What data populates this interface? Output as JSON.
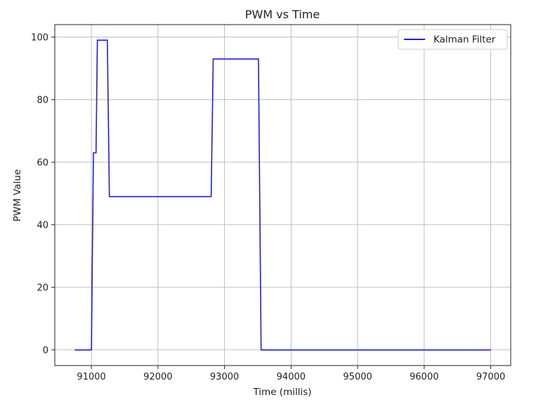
{
  "chart_data": {
    "type": "line",
    "title": "PWM vs Time",
    "xlabel": "Time (millis)",
    "ylabel": "PWM Value",
    "xlim": [
      90450,
      97300
    ],
    "ylim": [
      -5,
      104
    ],
    "xticks": [
      91000,
      92000,
      93000,
      94000,
      95000,
      96000,
      97000
    ],
    "yticks": [
      0,
      20,
      40,
      60,
      80,
      100
    ],
    "grid": true,
    "legend_position": "top-right",
    "series": [
      {
        "name": "Kalman Filter",
        "color": "#1f1fe0",
        "points": [
          [
            90750,
            0
          ],
          [
            91000,
            0
          ],
          [
            91030,
            63
          ],
          [
            91070,
            63
          ],
          [
            91090,
            99
          ],
          [
            91240,
            99
          ],
          [
            91270,
            49
          ],
          [
            92800,
            49
          ],
          [
            92830,
            93
          ],
          [
            93510,
            93
          ],
          [
            93550,
            0
          ],
          [
            97000,
            0
          ]
        ]
      }
    ]
  }
}
